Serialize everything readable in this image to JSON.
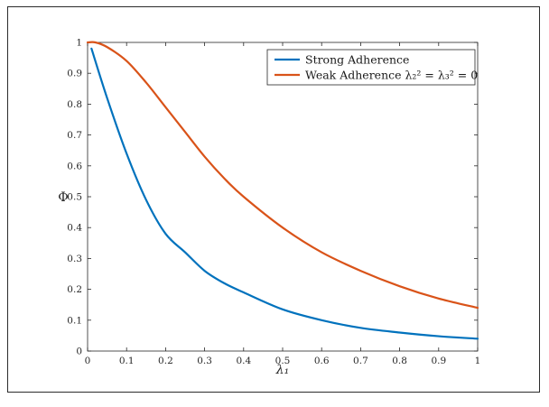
{
  "chart_data": {
    "type": "line",
    "title": "",
    "xlabel": "λ₁",
    "ylabel": "Φ",
    "xlim": [
      0,
      1
    ],
    "ylim": [
      0,
      1
    ],
    "grid": false,
    "legend_position": "top-right",
    "xticks": [
      "0",
      "0.1",
      "0.2",
      "0.3",
      "0.4",
      "0.5",
      "0.6",
      "0.7",
      "0.8",
      "0.9",
      "1"
    ],
    "yticks": [
      "0",
      "0.1",
      "0.2",
      "0.3",
      "0.4",
      "0.5",
      "0.6",
      "0.7",
      "0.8",
      "0.9",
      "1"
    ],
    "series": [
      {
        "name": "Strong Adherence",
        "color": "#0072BD",
        "x": [
          0.01,
          0.05,
          0.1,
          0.15,
          0.2,
          0.25,
          0.3,
          0.35,
          0.4,
          0.5,
          0.6,
          0.7,
          0.8,
          0.9,
          1.0
        ],
        "y": [
          0.98,
          0.82,
          0.64,
          0.49,
          0.38,
          0.32,
          0.26,
          0.22,
          0.19,
          0.135,
          0.1,
          0.075,
          0.06,
          0.048,
          0.04
        ]
      },
      {
        "name": "Weak Adherence λ₂² = λ₃² = 0",
        "color": "#D95319",
        "x": [
          0,
          0.02,
          0.05,
          0.1,
          0.15,
          0.2,
          0.25,
          0.3,
          0.35,
          0.4,
          0.5,
          0.6,
          0.7,
          0.8,
          0.9,
          1.0
        ],
        "y": [
          1.0,
          1.0,
          0.985,
          0.94,
          0.87,
          0.79,
          0.71,
          0.63,
          0.56,
          0.5,
          0.4,
          0.32,
          0.26,
          0.21,
          0.17,
          0.14
        ]
      }
    ]
  }
}
